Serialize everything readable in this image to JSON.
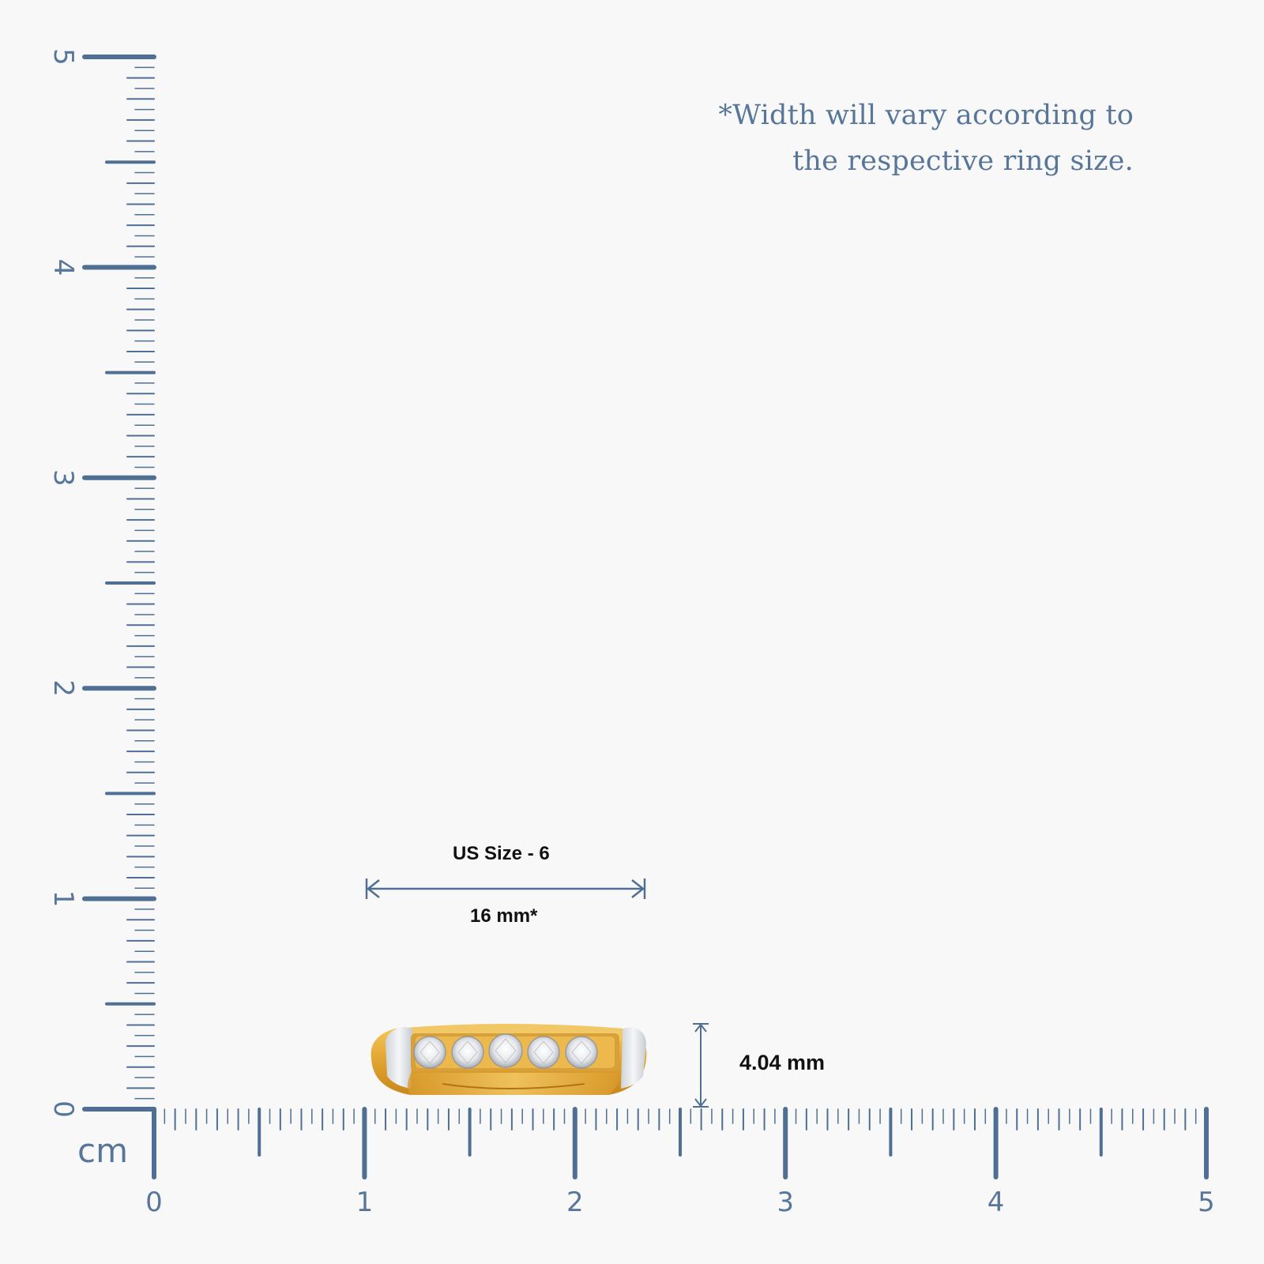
{
  "colors": {
    "ruler": "#4f6f93",
    "text_blue": "#577699",
    "label": "#111111",
    "gold": "#e0a330",
    "white_metal": "#e3e6ea"
  },
  "note": {
    "line1": "*Width will vary according to",
    "line2": "the respective ring size."
  },
  "ruler": {
    "unit": "cm",
    "x_labels": [
      "0",
      "1",
      "2",
      "3",
      "4",
      "5"
    ],
    "y_labels": [
      "0",
      "1",
      "2",
      "3",
      "4",
      "5"
    ],
    "range_cm": [
      0,
      5
    ],
    "minor_divisions_per_cm": 20
  },
  "ring": {
    "size_label": "US Size - 6",
    "width_label": "16 mm*",
    "height_label": "4.04 mm",
    "stones": 5,
    "icon": "ring-image"
  }
}
